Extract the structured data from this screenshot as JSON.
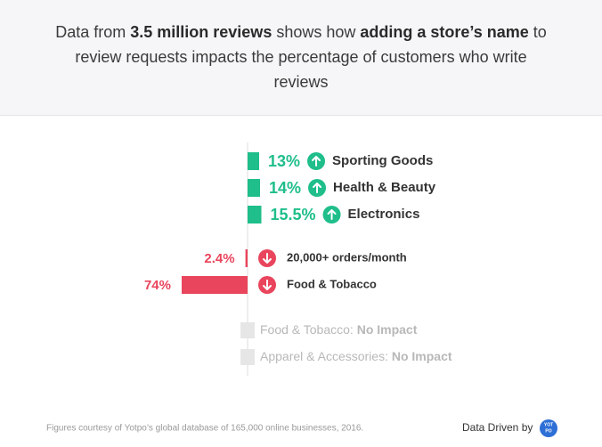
{
  "header": {
    "title": [
      {
        "text": "Data from ",
        "bold": false
      },
      {
        "text": "3.5 million reviews",
        "bold": true
      },
      {
        "text": " shows how ",
        "bold": false
      },
      {
        "text": "adding a store’s name",
        "bold": true
      },
      {
        "text": " to review requests impacts the percentage of customers who write reviews",
        "bold": false
      }
    ]
  },
  "chart_data": {
    "type": "bar",
    "orientation": "horizontal",
    "categories": [
      "Sporting Goods",
      "Health & Beauty",
      "Electronics",
      "20,000+ orders/month",
      "Food & Tobacco",
      "Food & Tobacco:",
      "Apparel & Accessories:"
    ],
    "values": [
      13,
      14,
      15.5,
      -2.4,
      -74,
      null,
      null
    ],
    "value_labels": [
      "13%",
      "14%",
      "15.5%",
      "2.4%",
      "74%",
      null,
      null
    ],
    "status_labels": [
      null,
      null,
      null,
      null,
      null,
      "No Impact",
      "No Impact"
    ],
    "colors": {
      "up": "#1fbe8a",
      "down": "#e9455c",
      "none": "#e6e6e6"
    }
  },
  "footer": {
    "source": "Figures courtesy of Yotpo’s global database of 165,000 online businesses, 2016.",
    "credit": "Data Driven by",
    "logo": [
      "YOT",
      "PO"
    ]
  }
}
